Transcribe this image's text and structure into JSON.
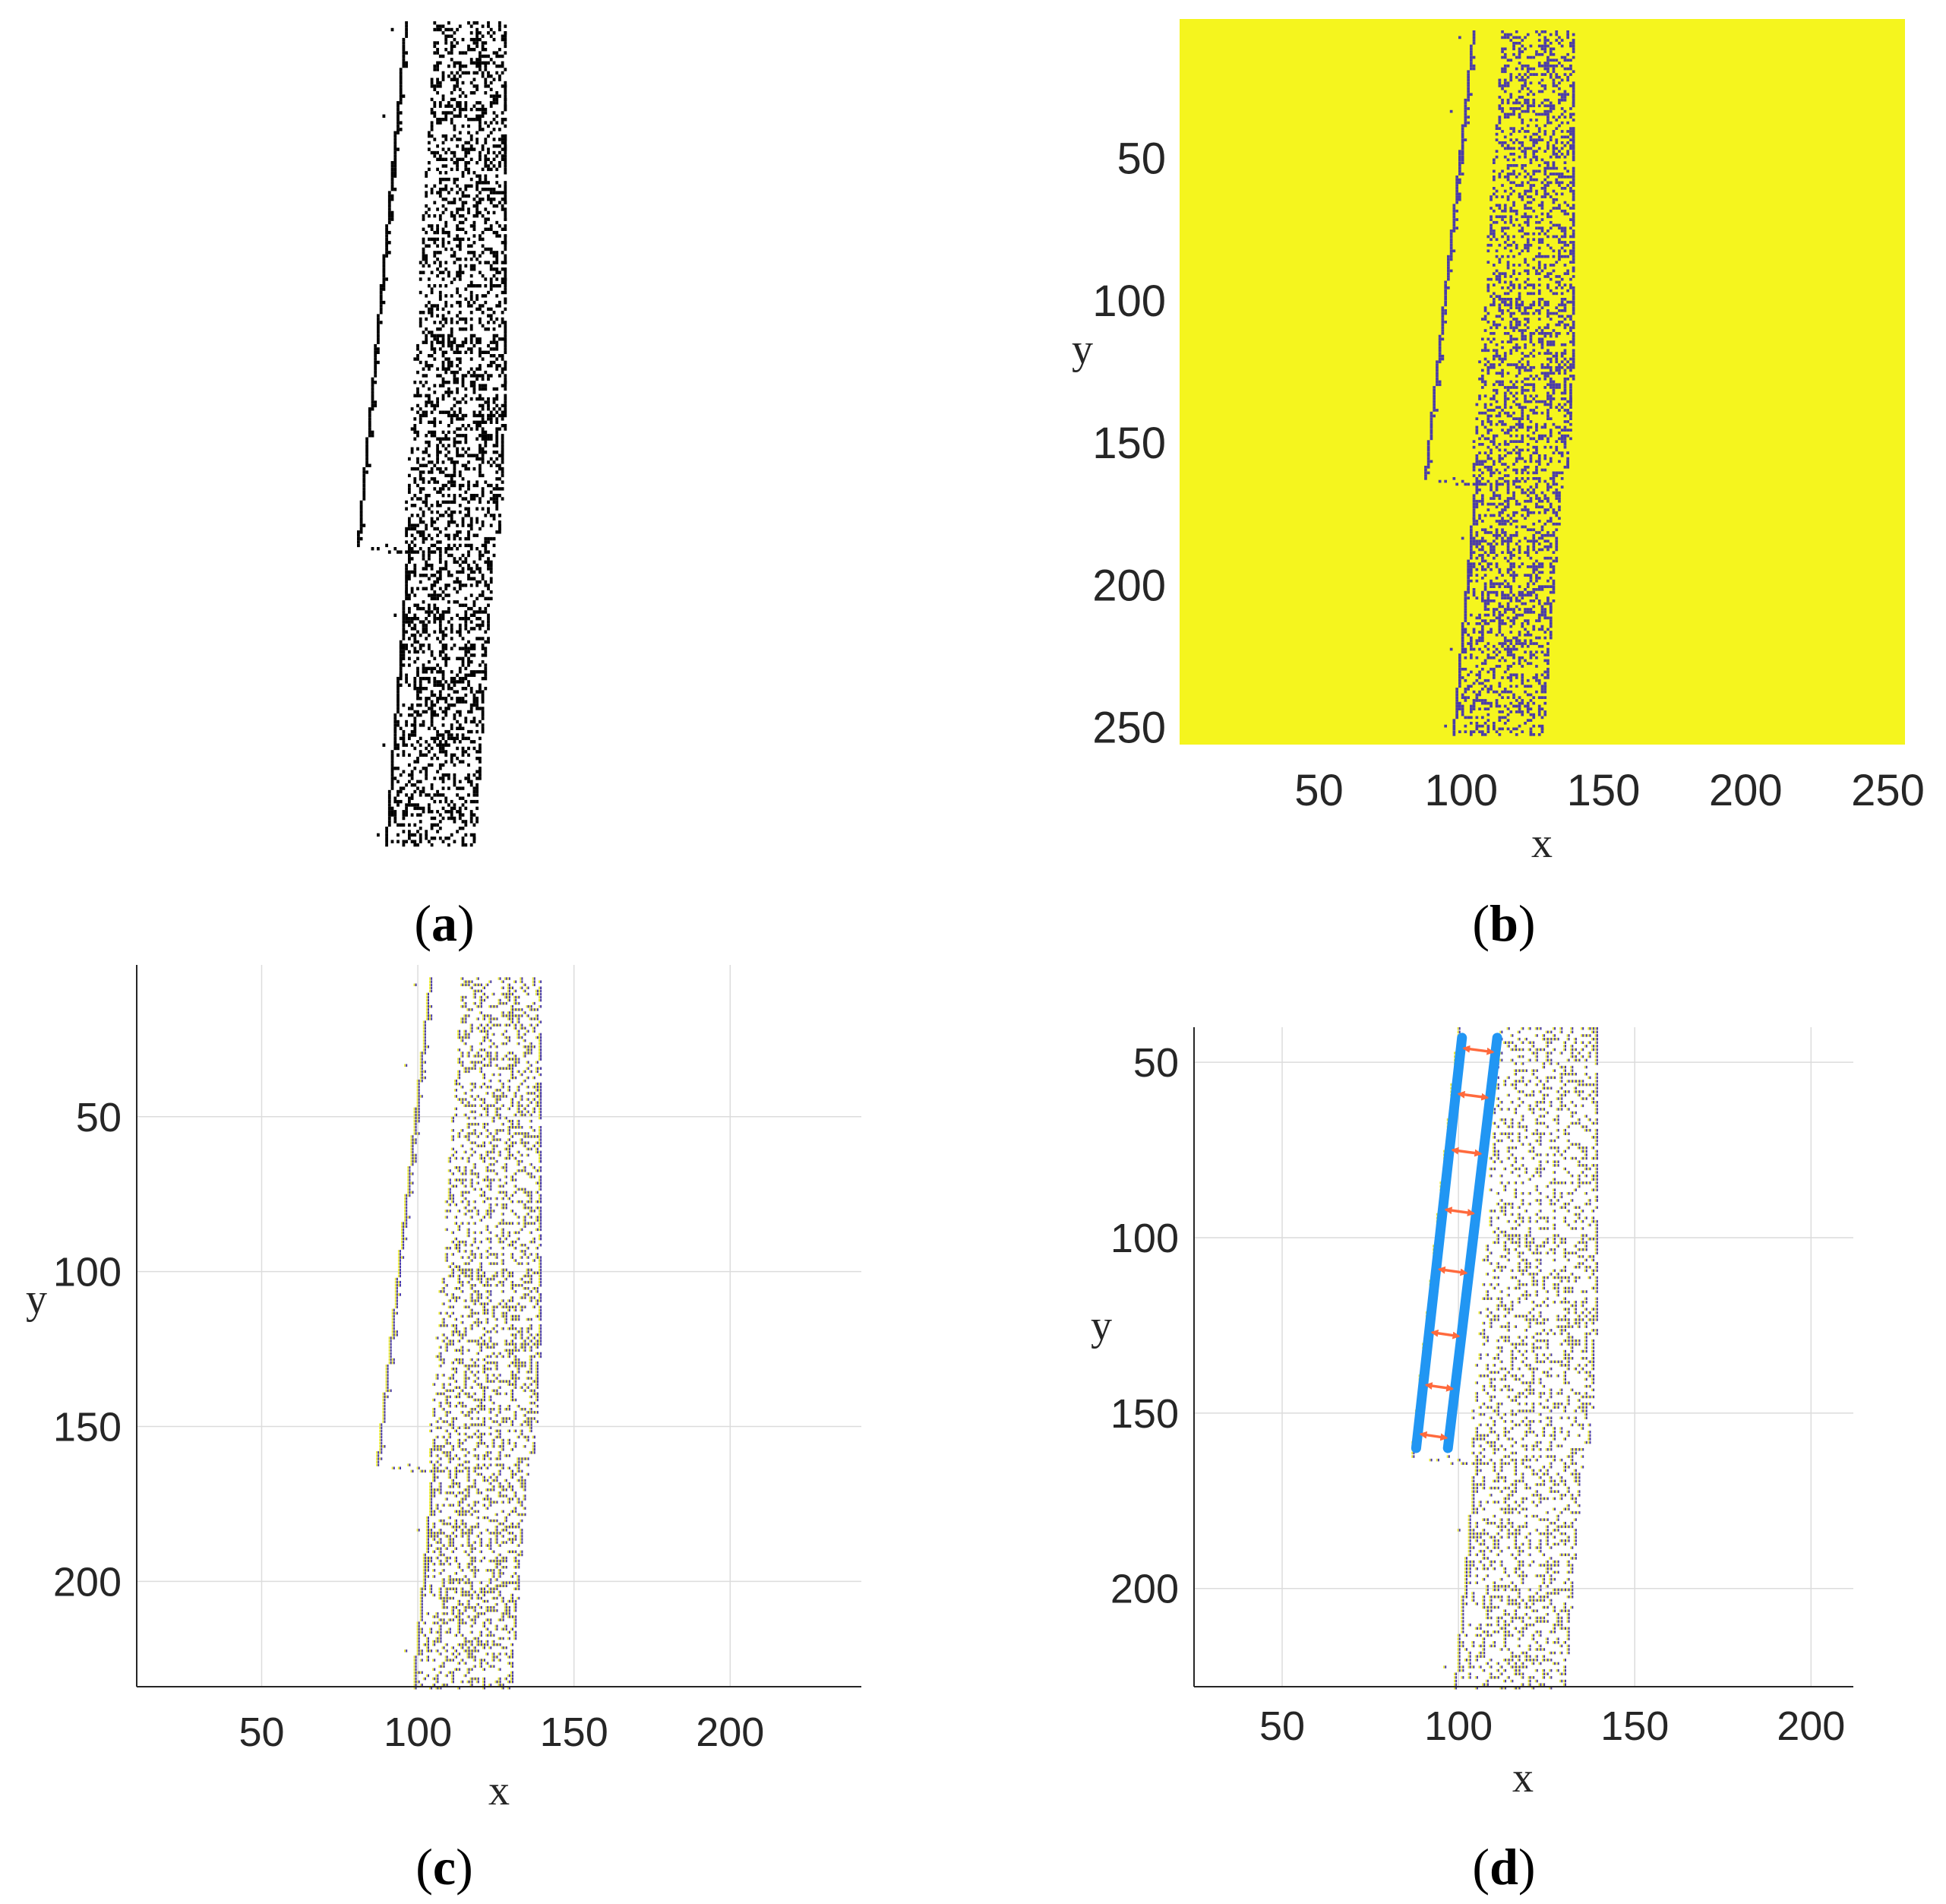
{
  "chart_data": [
    {
      "panel": "a",
      "type": "heatmap",
      "caption_letter": "a",
      "colormap": [
        "#ffffff",
        "#000000"
      ],
      "axes_visible": false,
      "grid": false
    },
    {
      "panel": "b",
      "type": "heatmap",
      "caption_letter": "b",
      "xlabel": "x",
      "ylabel": "y",
      "xlim": [
        1,
        256
      ],
      "ylim": [
        1,
        256
      ],
      "y_reversed": true,
      "xticks": [
        "50",
        "100",
        "150",
        "200",
        "250"
      ],
      "yticks": [
        "50",
        "100",
        "150",
        "200",
        "250"
      ],
      "colormap": [
        "#f5f51e",
        "#4b3ca8"
      ],
      "grid": false
    },
    {
      "panel": "c",
      "type": "scatter",
      "caption_letter": "c",
      "xlabel": "x",
      "ylabel": "y",
      "xlim": [
        10,
        242
      ],
      "ylim": [
        1,
        234
      ],
      "y_reversed": true,
      "xticks": [
        "50",
        "100",
        "150",
        "200"
      ],
      "yticks": [
        "50",
        "100",
        "150",
        "200"
      ],
      "point_colors": [
        "#e8e83a",
        "#4b3ca8"
      ],
      "grid": true
    },
    {
      "panel": "d",
      "type": "scatter",
      "caption_letter": "d",
      "xlabel": "x",
      "ylabel": "y",
      "xlim": [
        25,
        212
      ],
      "ylim": [
        40,
        228
      ],
      "y_reversed": true,
      "xticks": [
        "50",
        "100",
        "150",
        "200"
      ],
      "yticks": [
        "50",
        "100",
        "150",
        "200"
      ],
      "point_colors": [
        "#e8e83a",
        "#4b3ca8"
      ],
      "grid": true,
      "fitted_lines": [
        {
          "x": [
            101,
            88
          ],
          "y": [
            43,
            160
          ],
          "color": "#2196f3"
        },
        {
          "x": [
            111,
            97
          ],
          "y": [
            43,
            160
          ],
          "color": "#2196f3"
        }
      ],
      "width_arrows": {
        "y": [
          46,
          59,
          75,
          92,
          109,
          127,
          142,
          156
        ],
        "color": "#ff6a3d"
      }
    }
  ]
}
